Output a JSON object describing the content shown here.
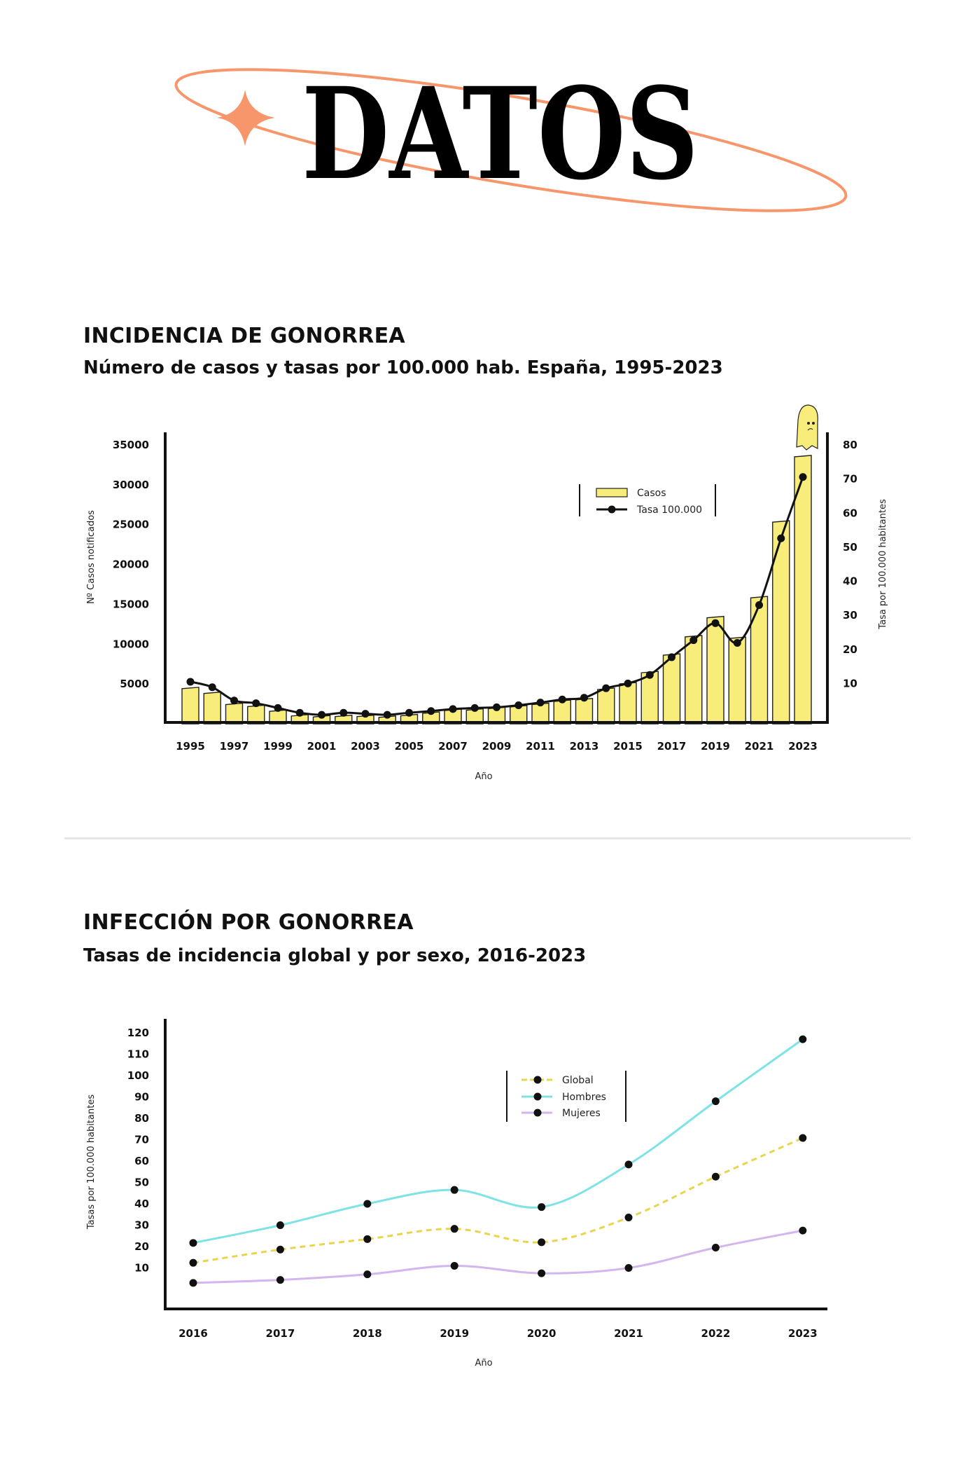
{
  "header": {
    "logo_text": "DATOS",
    "accent_color": "#F7966A"
  },
  "section1": {
    "title": "INCIDENCIA DE GONORREA",
    "subtitle": "Número de casos y tasas por 100.000 hab. España, 1995-2023"
  },
  "section2": {
    "title": "INFECCIÓN POR GONORREA",
    "subtitle": "Tasas de incidencia global y por sexo, 2016-2023"
  },
  "chart_data": [
    {
      "type": "bar+line",
      "xlabel": "Año",
      "ylabel": "Nº Casos notificados",
      "ylabel_right": "Tasa por 100.000 habitantes",
      "x": [
        1995,
        1996,
        1997,
        1998,
        1999,
        2000,
        2001,
        2002,
        2003,
        2004,
        2005,
        2006,
        2007,
        2008,
        2009,
        2010,
        2011,
        2012,
        2013,
        2014,
        2015,
        2016,
        2017,
        2018,
        2019,
        2020,
        2021,
        2022,
        2023
      ],
      "x_tick_labels": [
        "1995",
        "1997",
        "1999",
        "2001",
        "2003",
        "2005",
        "2007",
        "2009",
        "2011",
        "2013",
        "2015",
        "2017",
        "2019",
        "2021",
        "2023"
      ],
      "ylim": [
        0,
        35000
      ],
      "y_ticks": [
        "5000",
        "10000",
        "15000",
        "20000",
        "25000",
        "30000",
        "35000"
      ],
      "ylim_right": [
        0,
        80
      ],
      "y_ticks_right": [
        "10",
        "20",
        "30",
        "40",
        "50",
        "60",
        "70",
        "80"
      ],
      "legend_position": "top-right",
      "grid": false,
      "series": [
        {
          "name": "Casos",
          "kind": "bar",
          "color": "#F8EC7A",
          "values": [
            4500,
            3900,
            2500,
            2250,
            1660,
            1070,
            950,
            1000,
            1000,
            900,
            1100,
            1400,
            1750,
            1800,
            2000,
            2200,
            2500,
            2900,
            3100,
            4400,
            5100,
            6500,
            8700,
            11000,
            13400,
            10800,
            15900,
            25400,
            33600
          ]
        },
        {
          "name": "Tasa 100.000",
          "kind": "line",
          "axis": "right",
          "color": "#111111",
          "values": [
            10.5,
            8.9,
            5.0,
            4.2,
            2.8,
            1.4,
            0.8,
            1.4,
            1.1,
            0.8,
            1.4,
            1.9,
            2.5,
            2.8,
            3.0,
            3.6,
            4.4,
            5.3,
            5.8,
            8.6,
            10.0,
            12.5,
            17.7,
            22.7,
            27.7,
            21.9,
            33.0,
            52.6,
            70.6
          ]
        }
      ]
    },
    {
      "type": "line",
      "xlabel": "Año",
      "ylabel": "Tasas por 100.000 habitantes",
      "x": [
        "2016",
        "2017",
        "2018",
        "2019",
        "2020",
        "2021",
        "2022",
        "2023"
      ],
      "ylim": [
        0,
        120
      ],
      "y_ticks": [
        "10",
        "20",
        "30",
        "40",
        "50",
        "60",
        "70",
        "80",
        "90",
        "100",
        "110",
        "120"
      ],
      "legend_position": "top-center",
      "grid": false,
      "series": [
        {
          "name": "Global",
          "color": "#E8D54E",
          "dashed": true,
          "values": [
            12.4,
            18.6,
            23.5,
            28.3,
            22.0,
            33.6,
            52.7,
            70.8
          ]
        },
        {
          "name": "Hombres",
          "color": "#7EE3E6",
          "dashed": false,
          "values": [
            21.7,
            30.0,
            40.0,
            46.5,
            38.5,
            58.4,
            88.0,
            117.0
          ]
        },
        {
          "name": "Mujeres",
          "color": "#D4B6EE",
          "dashed": false,
          "values": [
            3.0,
            4.4,
            7.0,
            11.0,
            7.5,
            10.0,
            19.5,
            27.5
          ]
        }
      ]
    }
  ]
}
